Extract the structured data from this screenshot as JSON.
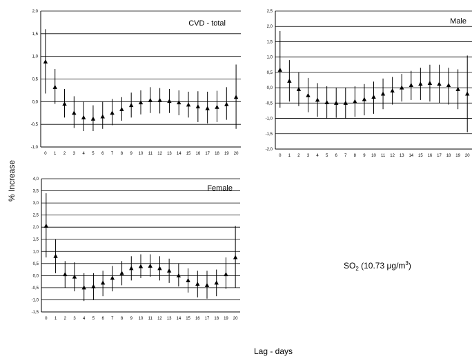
{
  "figure": {
    "ylabel": "% Increase",
    "xlabel": "Lag - days",
    "annotation": {
      "main": "SO",
      "sub": "2",
      "rest": " (10.73 μg/m",
      "sup": "3",
      "close": ")"
    }
  },
  "chart_data": [
    {
      "type": "scatter",
      "title": "CVD - total",
      "legend_position": "top-right",
      "grid": "horizontal",
      "ylim": [
        -1.0,
        2.0
      ],
      "yticks": [
        "2,0",
        "1,5",
        "1,0",
        "0,5",
        "0,0",
        "-0,5",
        "-1,0"
      ],
      "ytick_values": [
        2.0,
        1.5,
        1.0,
        0.5,
        0.0,
        -0.5,
        -1.0
      ],
      "x": [
        0,
        1,
        2,
        3,
        4,
        5,
        6,
        7,
        8,
        9,
        10,
        11,
        12,
        13,
        14,
        15,
        16,
        17,
        18,
        19,
        20
      ],
      "y": [
        0.88,
        0.32,
        -0.05,
        -0.25,
        -0.35,
        -0.38,
        -0.33,
        -0.25,
        -0.17,
        -0.08,
        -0.02,
        0.03,
        0.03,
        0.01,
        -0.02,
        -0.07,
        -0.11,
        -0.15,
        -0.12,
        -0.06,
        0.1
      ],
      "lower": [
        0.18,
        -0.05,
        -0.35,
        -0.58,
        -0.65,
        -0.65,
        -0.6,
        -0.52,
        -0.42,
        -0.35,
        -0.28,
        -0.25,
        -0.26,
        -0.25,
        -0.3,
        -0.35,
        -0.45,
        -0.48,
        -0.45,
        -0.4,
        -0.6
      ],
      "upper": [
        1.6,
        0.72,
        0.28,
        0.12,
        0.0,
        -0.08,
        0.0,
        0.06,
        0.1,
        0.2,
        0.25,
        0.32,
        0.3,
        0.28,
        0.25,
        0.22,
        0.23,
        0.22,
        0.24,
        0.32,
        0.82
      ]
    },
    {
      "type": "scatter",
      "title": "Male",
      "legend_position": "top-right",
      "grid": "horizontal",
      "ylim": [
        -2.0,
        2.5
      ],
      "yticks": [
        "2,5",
        "2,0",
        "1,5",
        "1,0",
        "0,5",
        "0,0",
        "-0,5",
        "-1,0",
        "-1,5",
        "-2,0"
      ],
      "ytick_values": [
        2.5,
        2.0,
        1.5,
        1.0,
        0.5,
        0.0,
        -0.5,
        -1.0,
        -1.5,
        -2.0
      ],
      "x": [
        0,
        1,
        2,
        3,
        4,
        5,
        6,
        7,
        8,
        9,
        10,
        11,
        12,
        13,
        14,
        15,
        16,
        17,
        18,
        19,
        20
      ],
      "y": [
        0.58,
        0.22,
        -0.05,
        -0.25,
        -0.4,
        -0.48,
        -0.5,
        -0.5,
        -0.45,
        -0.38,
        -0.3,
        -0.2,
        -0.1,
        0.0,
        0.08,
        0.12,
        0.15,
        0.12,
        0.08,
        -0.05,
        -0.2
      ],
      "lower": [
        -0.65,
        -0.45,
        -0.6,
        -0.8,
        -0.95,
        -1.0,
        -0.98,
        -1.0,
        -0.95,
        -0.9,
        -0.85,
        -0.7,
        -0.55,
        -0.45,
        -0.4,
        -0.4,
        -0.45,
        -0.5,
        -0.55,
        -0.7,
        -1.45
      ],
      "upper": [
        1.85,
        0.9,
        0.5,
        0.32,
        0.15,
        0.05,
        0.0,
        0.0,
        0.05,
        0.12,
        0.2,
        0.3,
        0.35,
        0.45,
        0.55,
        0.65,
        0.75,
        0.75,
        0.65,
        0.6,
        1.05
      ]
    },
    {
      "type": "scatter",
      "title": "Female",
      "legend_position": "top-right",
      "grid": "horizontal",
      "ylim": [
        -1.5,
        4.0
      ],
      "yticks": [
        "4,0",
        "3,5",
        "3,0",
        "2,5",
        "2,0",
        "1,5",
        "1,0",
        "0,5",
        "0,0",
        "-0,5",
        "-1,0",
        "-1,5"
      ],
      "ytick_values": [
        4.0,
        3.5,
        3.0,
        2.5,
        2.0,
        1.5,
        1.0,
        0.5,
        0.0,
        -0.5,
        -1.0,
        -1.5
      ],
      "x": [
        0,
        1,
        2,
        3,
        4,
        5,
        6,
        7,
        8,
        9,
        10,
        11,
        12,
        13,
        14,
        15,
        16,
        17,
        18,
        19,
        20
      ],
      "y": [
        2.05,
        0.8,
        0.05,
        -0.05,
        -0.5,
        -0.45,
        -0.3,
        -0.1,
        0.1,
        0.3,
        0.38,
        0.4,
        0.3,
        0.2,
        0.0,
        -0.2,
        -0.35,
        -0.4,
        -0.3,
        0.05,
        0.75
      ],
      "lower": [
        0.75,
        0.1,
        -0.5,
        -0.65,
        -1.05,
        -1.0,
        -0.85,
        -0.65,
        -0.4,
        -0.2,
        -0.1,
        -0.05,
        -0.2,
        -0.3,
        -0.45,
        -0.7,
        -0.9,
        -0.95,
        -0.85,
        -0.55,
        -0.5
      ],
      "upper": [
        3.4,
        1.5,
        0.6,
        0.55,
        0.1,
        0.1,
        0.2,
        0.4,
        0.6,
        0.8,
        0.88,
        0.88,
        0.8,
        0.7,
        0.5,
        0.3,
        0.2,
        0.2,
        0.25,
        0.75,
        2.05
      ]
    }
  ]
}
